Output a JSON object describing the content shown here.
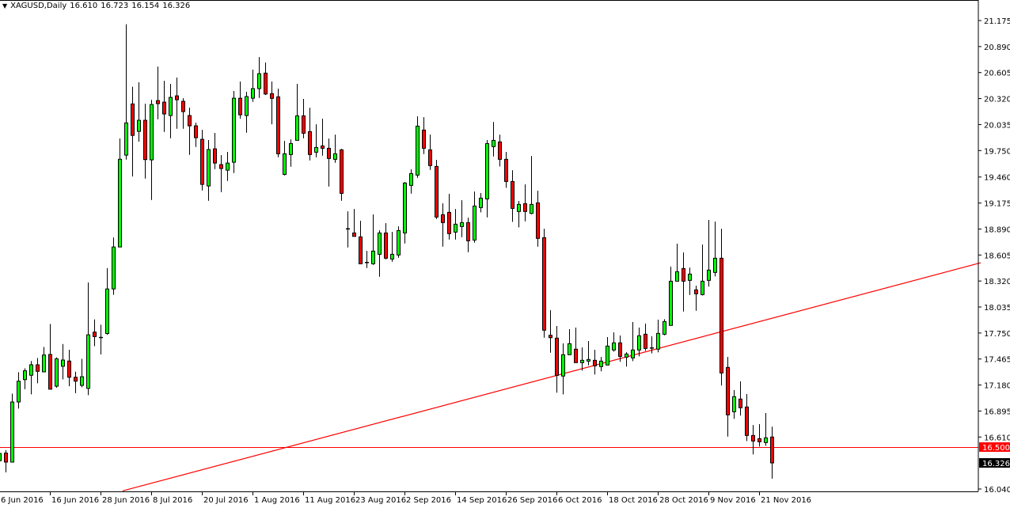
{
  "header": {
    "symbol_timeframe": "XAGUSD,Daily",
    "open": "16.610",
    "high": "16.723",
    "low": "16.154",
    "close": "16.326",
    "menu_icon": "triangle-down-icon"
  },
  "colors": {
    "bull": "#00ff00",
    "bear": "#ff0000",
    "outline": "#000000",
    "trendline": "#ff0000",
    "level_line": "#ff0000",
    "level_label_bg": "#ff0000",
    "price_label_bg": "#000000"
  },
  "chart_data": {
    "type": "candlestick",
    "symbol": "XAGUSD",
    "timeframe": "Daily",
    "ylim": [
      16.04,
      21.175
    ],
    "y_ticks": [
      "21.175",
      "20.890",
      "20.605",
      "20.320",
      "20.035",
      "19.750",
      "19.460",
      "19.175",
      "18.890",
      "18.605",
      "18.320",
      "18.035",
      "17.750",
      "17.465",
      "17.180",
      "16.895",
      "16.610",
      "16.040"
    ],
    "x_ticks": [
      {
        "bar": 0,
        "label": "6 Jun 2016"
      },
      {
        "bar": 8,
        "label": "16 Jun 2016"
      },
      {
        "bar": 16,
        "label": "28 Jun 2016"
      },
      {
        "bar": 24,
        "label": "8 Jul 2016"
      },
      {
        "bar": 32,
        "label": "20 Jul 2016"
      },
      {
        "bar": 40,
        "label": "1 Aug 2016"
      },
      {
        "bar": 48,
        "label": "11 Aug 2016"
      },
      {
        "bar": 56,
        "label": "23 Aug 2016"
      },
      {
        "bar": 64,
        "label": "2 Sep 2016"
      },
      {
        "bar": 72,
        "label": "14 Sep 2016"
      },
      {
        "bar": 80,
        "label": "26 Sep 2016"
      },
      {
        "bar": 88,
        "label": "6 Oct 2016"
      },
      {
        "bar": 96,
        "label": "18 Oct 2016"
      },
      {
        "bar": 104,
        "label": "28 Oct 2016"
      },
      {
        "bar": 112,
        "label": "9 Nov 2016"
      },
      {
        "bar": 120,
        "label": "21 Nov 2016"
      }
    ],
    "ohlc_fields": [
      "open",
      "high",
      "low",
      "close"
    ],
    "candles": [
      [
        16.35,
        16.44,
        16.22,
        16.43
      ],
      [
        16.434,
        16.466,
        16.222,
        16.335
      ],
      [
        16.335,
        17.085,
        16.335,
        16.994
      ],
      [
        16.994,
        17.32,
        16.922,
        17.222
      ],
      [
        17.239,
        17.363,
        17.134,
        17.336
      ],
      [
        17.287,
        17.443,
        17.078,
        17.402
      ],
      [
        17.402,
        17.476,
        17.199,
        17.33
      ],
      [
        17.324,
        17.597,
        17.324,
        17.509
      ],
      [
        17.515,
        17.848,
        17.134,
        17.134
      ],
      [
        17.167,
        17.483,
        17.15,
        17.467
      ],
      [
        17.385,
        17.63,
        17.241,
        17.454
      ],
      [
        17.443,
        17.567,
        17.167,
        17.265
      ],
      [
        17.265,
        17.326,
        17.091,
        17.222
      ],
      [
        17.176,
        17.467,
        17.156,
        17.271
      ],
      [
        17.143,
        18.305,
        17.069,
        17.73
      ],
      [
        17.76,
        17.9,
        17.606,
        17.711
      ],
      [
        17.705,
        17.841,
        17.515,
        17.705
      ],
      [
        17.744,
        18.461,
        17.731,
        18.233
      ],
      [
        18.233,
        18.797,
        18.168,
        18.693
      ],
      [
        18.693,
        19.883,
        18.693,
        19.655
      ],
      [
        19.7,
        21.135,
        19.651,
        20.053
      ],
      [
        20.261,
        20.45,
        19.466,
        19.916
      ],
      [
        19.96,
        20.498,
        19.847,
        20.082
      ],
      [
        20.082,
        20.264,
        19.442,
        19.651
      ],
      [
        19.648,
        20.307,
        19.208,
        20.255
      ],
      [
        20.298,
        20.671,
        20.093,
        20.264
      ],
      [
        20.281,
        20.515,
        19.954,
        20.151
      ],
      [
        20.134,
        20.481,
        19.885,
        20.333
      ],
      [
        20.35,
        20.55,
        19.989,
        20.307
      ],
      [
        20.29,
        20.324,
        19.989,
        20.177
      ],
      [
        20.134,
        20.22,
        19.703,
        20.021
      ],
      [
        20.021,
        20.056,
        19.789,
        19.891
      ],
      [
        19.873,
        19.977,
        19.312,
        19.379
      ],
      [
        19.362,
        19.865,
        19.2,
        19.761
      ],
      [
        19.769,
        19.943,
        19.546,
        19.613
      ],
      [
        19.596,
        19.7,
        19.295,
        19.553
      ],
      [
        19.535,
        19.735,
        19.416,
        19.613
      ],
      [
        19.622,
        20.403,
        19.503,
        20.324
      ],
      [
        20.324,
        20.507,
        20.099,
        20.142
      ],
      [
        20.134,
        20.394,
        19.945,
        20.342
      ],
      [
        20.324,
        20.637,
        20.284,
        20.429
      ],
      [
        20.429,
        20.775,
        20.327,
        20.593
      ],
      [
        20.599,
        20.715,
        20.359,
        20.37
      ],
      [
        20.374,
        20.507,
        20.038,
        20.322
      ],
      [
        20.339,
        20.429,
        19.677,
        19.715
      ],
      [
        19.489,
        19.856,
        19.477,
        19.715
      ],
      [
        19.706,
        19.873,
        19.572,
        19.827
      ],
      [
        19.862,
        20.481,
        19.862,
        20.131
      ],
      [
        20.131,
        20.316,
        19.885,
        19.94
      ],
      [
        19.958,
        20.22,
        19.642,
        19.706
      ],
      [
        19.732,
        20.038,
        19.677,
        19.784
      ],
      [
        19.801,
        20.099,
        19.694,
        19.775
      ],
      [
        19.775,
        19.882,
        19.356,
        19.663
      ],
      [
        19.654,
        19.925,
        19.616,
        19.715
      ],
      [
        19.758,
        19.769,
        19.2,
        19.281
      ],
      [
        18.896,
        19.084,
        18.688,
        18.896
      ],
      [
        18.847,
        19.11,
        18.809,
        18.809
      ],
      [
        18.804,
        18.98,
        18.509,
        18.509
      ],
      [
        18.527,
        18.651,
        18.462,
        18.527
      ],
      [
        18.509,
        19.05,
        18.497,
        18.648
      ],
      [
        18.613,
        18.876,
        18.367,
        18.847
      ],
      [
        18.847,
        18.954,
        18.558,
        18.57
      ],
      [
        18.561,
        18.859,
        18.532,
        18.613
      ],
      [
        18.605,
        18.919,
        18.575,
        18.873
      ],
      [
        18.847,
        19.405,
        18.731,
        19.394
      ],
      [
        19.368,
        19.544,
        19.278,
        19.498
      ],
      [
        19.481,
        20.125,
        19.451,
        20.018
      ],
      [
        19.975,
        20.116,
        19.711,
        19.775
      ],
      [
        19.758,
        19.925,
        19.538,
        19.585
      ],
      [
        19.576,
        19.648,
        19.0,
        19.021
      ],
      [
        19.047,
        19.171,
        18.696,
        18.96
      ],
      [
        19.073,
        19.275,
        18.775,
        18.839
      ],
      [
        18.856,
        19.11,
        18.775,
        18.943
      ],
      [
        18.917,
        19.206,
        18.801,
        18.96
      ],
      [
        18.96,
        19.015,
        18.636,
        18.761
      ],
      [
        18.769,
        19.301,
        18.74,
        19.142
      ],
      [
        19.125,
        19.284,
        19.073,
        19.229
      ],
      [
        19.22,
        19.865,
        19.017,
        19.827
      ],
      [
        19.793,
        20.064,
        19.685,
        19.862
      ],
      [
        19.845,
        19.925,
        19.576,
        19.654
      ],
      [
        19.654,
        19.735,
        19.342,
        19.411
      ],
      [
        19.411,
        19.535,
        18.969,
        19.116
      ],
      [
        19.082,
        19.197,
        18.908,
        19.16
      ],
      [
        19.168,
        19.379,
        18.974,
        19.082
      ],
      [
        19.061,
        19.691,
        19.052,
        19.16
      ],
      [
        19.177,
        19.31,
        18.696,
        18.787
      ],
      [
        18.795,
        18.893,
        17.699,
        17.781
      ],
      [
        17.725,
        18.0,
        17.534,
        17.699
      ],
      [
        17.694,
        17.827,
        17.096,
        17.286
      ],
      [
        17.278,
        17.636,
        17.078,
        17.512
      ],
      [
        17.512,
        17.792,
        17.512,
        17.633
      ],
      [
        17.573,
        17.809,
        17.425,
        17.425
      ],
      [
        17.425,
        17.592,
        17.338,
        17.451
      ],
      [
        17.442,
        17.662,
        17.396,
        17.46
      ],
      [
        17.451,
        17.566,
        17.295,
        17.39
      ],
      [
        17.382,
        17.488,
        17.33,
        17.442
      ],
      [
        17.399,
        17.705,
        17.399,
        17.607
      ],
      [
        17.564,
        17.757,
        17.546,
        17.642
      ],
      [
        17.642,
        17.723,
        17.434,
        17.494
      ],
      [
        17.486,
        17.54,
        17.382,
        17.52
      ],
      [
        17.477,
        17.87,
        17.442,
        17.564
      ],
      [
        17.564,
        17.809,
        17.494,
        17.72
      ],
      [
        17.737,
        17.853,
        17.555,
        17.581
      ],
      [
        17.59,
        17.714,
        17.526,
        17.59
      ],
      [
        17.573,
        17.896,
        17.538,
        17.746
      ],
      [
        17.737,
        17.902,
        17.725,
        17.876
      ],
      [
        17.833,
        18.477,
        17.833,
        18.318
      ],
      [
        18.318,
        18.729,
        18.318,
        18.422
      ],
      [
        18.457,
        18.633,
        17.985,
        18.318
      ],
      [
        18.327,
        18.468,
        18.167,
        18.396
      ],
      [
        18.223,
        18.269,
        17.994,
        18.18
      ],
      [
        18.171,
        18.72,
        18.162,
        18.318
      ],
      [
        18.327,
        18.989,
        18.258,
        18.44
      ],
      [
        18.414,
        18.971,
        18.37,
        18.57
      ],
      [
        18.57,
        18.893,
        17.174,
        17.312
      ],
      [
        17.373,
        17.488,
        16.615,
        16.853
      ],
      [
        16.887,
        17.124,
        16.809,
        17.052
      ],
      [
        17.026,
        17.22,
        16.844,
        16.931
      ],
      [
        16.939,
        17.081,
        16.566,
        16.627
      ],
      [
        16.627,
        16.742,
        16.419,
        16.566
      ],
      [
        16.592,
        16.751,
        16.506,
        16.558
      ],
      [
        16.549,
        16.873,
        16.514,
        16.601
      ],
      [
        16.61,
        16.723,
        16.154,
        16.326
      ]
    ],
    "trendline": {
      "start": {
        "bar": 19.5,
        "price": 16.02
      },
      "end": {
        "bar": 155,
        "price": 18.52
      }
    },
    "horizontal_level": {
      "price": 16.5,
      "label": "16.500"
    },
    "last_price_label": "16.326",
    "grid": false
  }
}
